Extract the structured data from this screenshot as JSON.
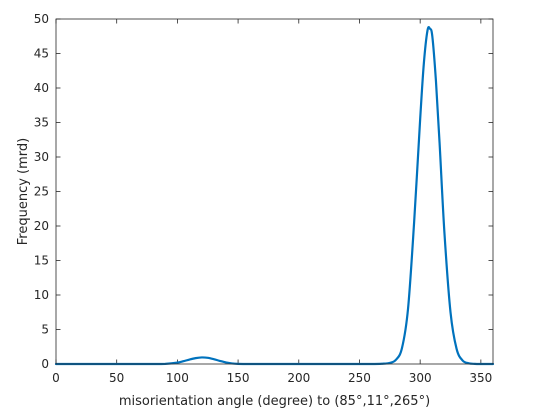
{
  "chart_data": {
    "type": "line",
    "title": "",
    "xlabel": "misorientation angle (degree) to (85°,11°,265°)",
    "ylabel": "Frequency (mrd)",
    "xlim": [
      0,
      360
    ],
    "ylim": [
      0,
      50
    ],
    "xticks": [
      0,
      50,
      100,
      150,
      200,
      250,
      300,
      350
    ],
    "yticks": [
      0,
      5,
      10,
      15,
      20,
      25,
      30,
      35,
      40,
      45,
      50
    ],
    "xtick_labels": [
      "0",
      "50",
      "100",
      "150",
      "200",
      "250",
      "300",
      "350"
    ],
    "ytick_labels": [
      "0",
      "5",
      "10",
      "15",
      "20",
      "25",
      "30",
      "35",
      "40",
      "45",
      "50"
    ],
    "grid": false,
    "legend": "none",
    "series": [
      {
        "color": "#0072BD",
        "x": [
          0,
          20,
          40,
          60,
          80,
          90,
          100,
          105,
          110,
          115,
          120,
          125,
          130,
          135,
          140,
          145,
          150,
          160,
          180,
          200,
          220,
          240,
          260,
          270,
          275,
          280,
          285,
          290,
          295,
          300,
          303,
          306,
          308,
          310,
          313,
          316,
          320,
          325,
          330,
          335,
          340,
          345,
          350,
          355,
          360
        ],
        "y": [
          0,
          0,
          0,
          0,
          0,
          0.02,
          0.2,
          0.4,
          0.65,
          0.85,
          0.95,
          0.9,
          0.7,
          0.45,
          0.22,
          0.08,
          0.02,
          0,
          0,
          0,
          0,
          0,
          0,
          0.05,
          0.15,
          0.6,
          2.3,
          8.0,
          20.5,
          35.5,
          43.5,
          48.3,
          48.6,
          47.5,
          41.0,
          32.0,
          19.0,
          7.5,
          2.2,
          0.5,
          0.1,
          0.02,
          0,
          0,
          0
        ]
      }
    ]
  }
}
